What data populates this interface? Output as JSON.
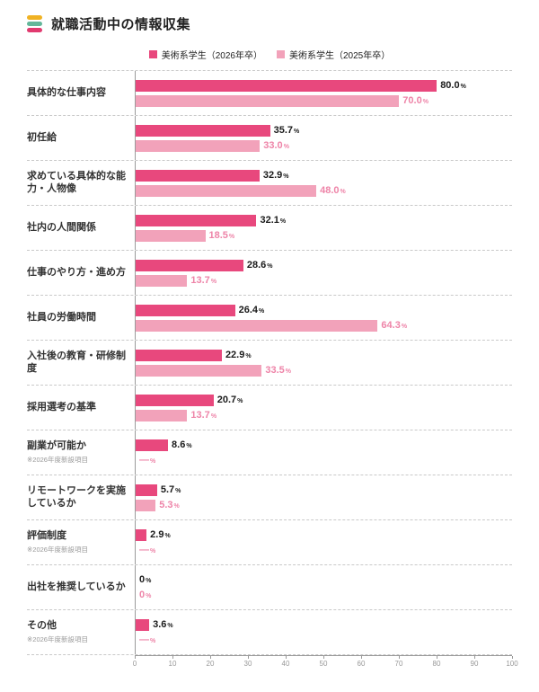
{
  "header": {
    "title": "就職活動中の情報収集",
    "logo_colors": [
      "#f0b223",
      "#63b79a",
      "#e13a6f"
    ]
  },
  "legend": [
    {
      "label": "美術系学生（2026年卒）",
      "color": "#e8487d"
    },
    {
      "label": "美術系学生（2025年卒）",
      "color": "#f2a2ba"
    }
  ],
  "chart_data": {
    "type": "bar",
    "orientation": "horizontal",
    "title": "就職活動中の情報収集",
    "unit": "%",
    "xlim": [
      0,
      100
    ],
    "xticks": [
      0,
      10,
      20,
      30,
      40,
      50,
      60,
      70,
      80,
      90,
      100
    ],
    "grid": false,
    "legend_position": "top",
    "categories": [
      "具体的な仕事内容",
      "初任給",
      "求めている具体的な能力・人物像",
      "社内の人間関係",
      "仕事のやり方・進め方",
      "社員の労働時間",
      "入社後の教育・研修制度",
      "採用選考の基準",
      "副業が可能か",
      "リモートワークを実施しているか",
      "評価制度",
      "出社を推奨しているか",
      "その他"
    ],
    "footnotes": [
      null,
      null,
      null,
      null,
      null,
      null,
      null,
      null,
      "※2026年度新設項目",
      null,
      "※2026年度新設項目",
      null,
      "※2026年度新設項目"
    ],
    "series": [
      {
        "name": "美術系学生（2026年卒）",
        "color": "#e8487d",
        "label_color": "#1a1a1a",
        "values": [
          80.0,
          35.7,
          32.9,
          32.1,
          28.6,
          26.4,
          22.9,
          20.7,
          8.6,
          5.7,
          2.9,
          0,
          3.6
        ],
        "labels": [
          "80.0",
          "35.7",
          "32.9",
          "32.1",
          "28.6",
          "26.4",
          "22.9",
          "20.7",
          "8.6",
          "5.7",
          "2.9",
          "0",
          "3.6"
        ]
      },
      {
        "name": "美術系学生（2025年卒）",
        "color": "#f2a2ba",
        "label_color": "#ee84a8",
        "values": [
          70.0,
          33.0,
          48.0,
          18.5,
          13.7,
          64.3,
          33.5,
          13.7,
          null,
          5.3,
          null,
          0,
          null
        ],
        "labels": [
          "70.0",
          "33.0",
          "48.0",
          "18.5",
          "13.7",
          "64.3",
          "33.5",
          "13.7",
          "—",
          "5.3",
          "—",
          "0",
          "—"
        ]
      }
    ]
  }
}
